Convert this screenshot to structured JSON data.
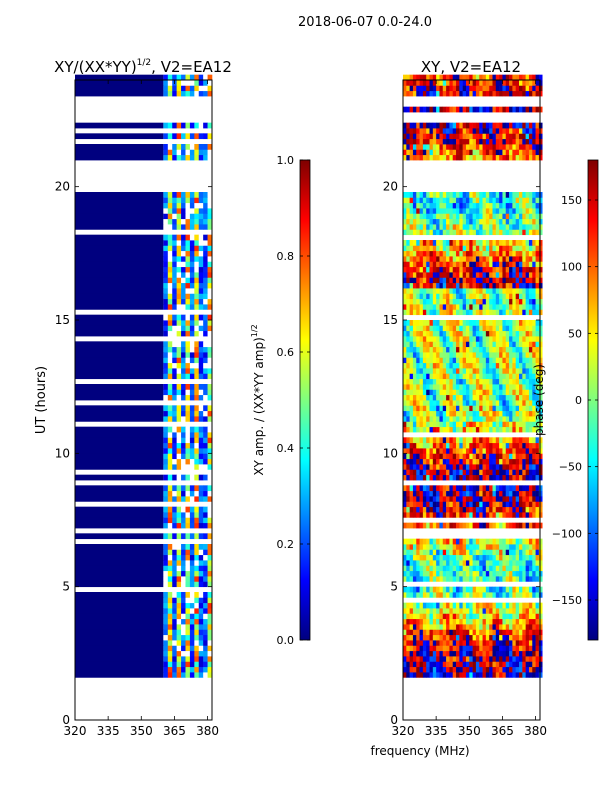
{
  "figure_title": "2018-06-07 0.0-24.0",
  "xlabel": "frequency (MHz)",
  "colors": {
    "panel_blue": "#00007f",
    "jet_stops": [
      "#00007f",
      "#0000ff",
      "#007fff",
      "#00ffff",
      "#7fff7f",
      "#ffff00",
      "#ff7f00",
      "#ff0000",
      "#7f0000"
    ]
  },
  "chart_data": [
    {
      "type": "heatmap",
      "title_main": "XY/(XX*YY)",
      "title_sup": "1/2",
      "title_rest": ", V2=EA12",
      "xlabel": "",
      "ylabel": "UT (hours)",
      "xlim": [
        320,
        382
      ],
      "ylim": [
        0,
        24
      ],
      "xticks": [
        320,
        335,
        350,
        365,
        380
      ],
      "yticks": [
        0,
        5,
        10,
        15,
        20
      ],
      "active_band_mhz": [
        360,
        382
      ],
      "data_hours": [
        1.6,
        24
      ],
      "gap_hours": [
        [
          16.1,
          16.2
        ],
        [
          19.7,
          21.0
        ],
        [
          22.3,
          22.8
        ],
        [
          23.0,
          23.4
        ]
      ],
      "colorbar": {
        "label_main": "XY amp. / (XX*YY amp)",
        "label_sup": "1/2",
        "range": [
          0.0,
          1.0
        ],
        "ticks": [
          "0.0",
          "0.2",
          "0.4",
          "0.6",
          "0.8",
          "1.0"
        ],
        "tick_values": [
          0.0,
          0.2,
          0.4,
          0.6,
          0.8,
          1.0
        ]
      }
    },
    {
      "type": "heatmap",
      "title": "XY, V2=EA12",
      "xlabel": "",
      "ylabel": "",
      "xlim": [
        320,
        382
      ],
      "ylim": [
        0,
        24
      ],
      "xticks": [
        320,
        335,
        350,
        365,
        380
      ],
      "yticks": [
        0,
        5,
        10,
        15,
        20
      ],
      "data_hours": [
        1.6,
        24
      ],
      "gap_hours": [
        [
          19.7,
          21.0
        ],
        [
          22.3,
          22.8
        ],
        [
          23.0,
          23.4
        ]
      ],
      "colorbar": {
        "label": "phase (deg)",
        "range": [
          -180,
          180
        ],
        "ticks": [
          "150",
          "100",
          "50",
          "0",
          "−50",
          "−100",
          "−150"
        ],
        "tick_values": [
          150,
          100,
          50,
          0,
          -50,
          -100,
          -150
        ]
      }
    }
  ]
}
